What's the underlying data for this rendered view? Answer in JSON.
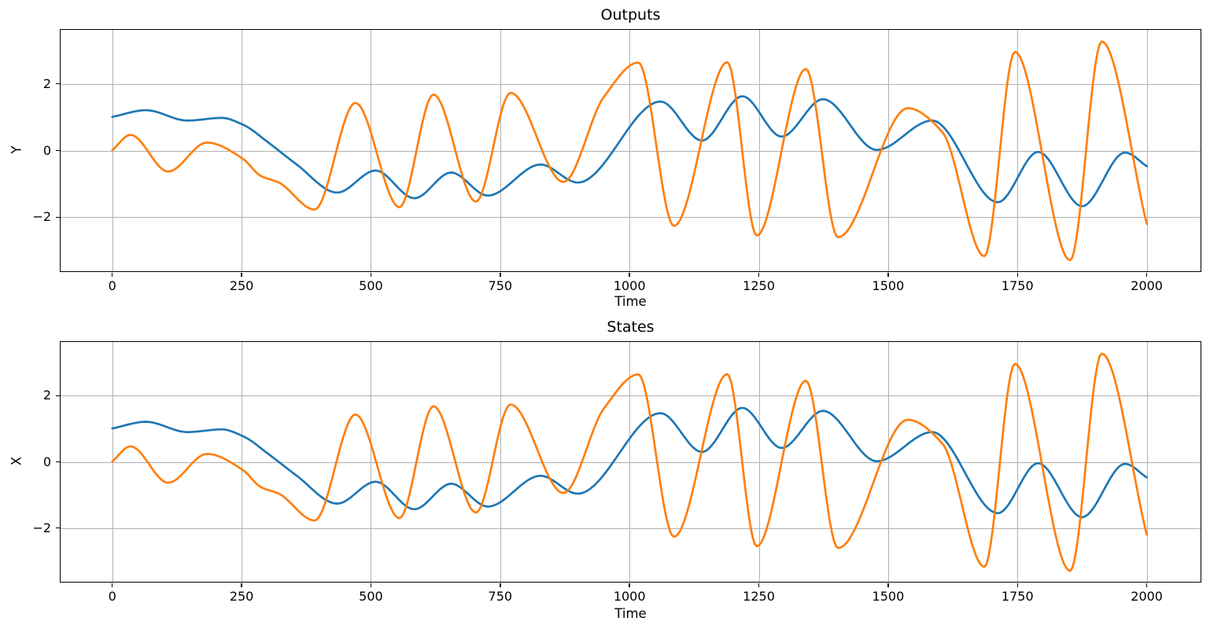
{
  "figure": {
    "background": "#ffffff"
  },
  "palette": {
    "series_blue": "#1f77b4",
    "series_orange": "#ff7f0e",
    "grid": "#b0b0b0",
    "spine": "#000000",
    "text": "#000000"
  },
  "chart_data": [
    {
      "type": "line",
      "title": "Outputs",
      "xlabel": "Time",
      "ylabel": "Y",
      "xlim": [
        -100,
        2104
      ],
      "ylim": [
        -3.62,
        3.62
      ],
      "x_ticks": [
        0,
        250,
        500,
        750,
        1000,
        1250,
        1500,
        1750,
        2000
      ],
      "y_ticks": [
        -2,
        0,
        2
      ],
      "grid": true,
      "legend": false,
      "curve": "smooth",
      "series": [
        {
          "id": "series-blue",
          "color": "#1f77b4",
          "points": [
            [
              0,
              1.01
            ],
            [
              65,
              1.21
            ],
            [
              145,
              0.9
            ],
            [
              212,
              0.98
            ],
            [
              252,
              0.78
            ],
            [
              305,
              0.2
            ],
            [
              355,
              -0.4
            ],
            [
              435,
              -1.26
            ],
            [
              509,
              -0.6
            ],
            [
              584,
              -1.43
            ],
            [
              655,
              -0.66
            ],
            [
              726,
              -1.35
            ],
            [
              828,
              -0.42
            ],
            [
              900,
              -0.96
            ],
            [
              1060,
              1.47
            ],
            [
              1140,
              0.3
            ],
            [
              1218,
              1.63
            ],
            [
              1294,
              0.42
            ],
            [
              1374,
              1.54
            ],
            [
              1478,
              0.02
            ],
            [
              1585,
              0.9
            ],
            [
              1712,
              -1.55
            ],
            [
              1790,
              -0.04
            ],
            [
              1875,
              -1.67
            ],
            [
              1958,
              -0.06
            ],
            [
              2000,
              -0.47
            ]
          ]
        },
        {
          "id": "series-orange",
          "color": "#ff7f0e",
          "points": [
            [
              0,
              0.01
            ],
            [
              35,
              0.47
            ],
            [
              108,
              -0.63
            ],
            [
              183,
              0.24
            ],
            [
              252,
              -0.24
            ],
            [
              287,
              -0.76
            ],
            [
              322,
              -0.96
            ],
            [
              391,
              -1.77
            ],
            [
              470,
              1.43
            ],
            [
              555,
              -1.7
            ],
            [
              621,
              1.68
            ],
            [
              703,
              -1.53
            ],
            [
              770,
              1.73
            ],
            [
              872,
              -0.94
            ],
            [
              950,
              1.6
            ],
            [
              1017,
              2.64
            ],
            [
              1086,
              -2.26
            ],
            [
              1189,
              2.65
            ],
            [
              1246,
              -2.55
            ],
            [
              1341,
              2.45
            ],
            [
              1403,
              -2.6
            ],
            [
              1538,
              1.27
            ],
            [
              1605,
              0.55
            ],
            [
              1686,
              -3.17
            ],
            [
              1745,
              2.96
            ],
            [
              1852,
              -3.29
            ],
            [
              1913,
              3.27
            ],
            [
              2000,
              -2.2
            ]
          ]
        }
      ]
    },
    {
      "type": "line",
      "title": "States",
      "xlabel": "Time",
      "ylabel": "X",
      "xlim": [
        -100,
        2104
      ],
      "ylim": [
        -3.62,
        3.62
      ],
      "x_ticks": [
        0,
        250,
        500,
        750,
        1000,
        1250,
        1500,
        1750,
        2000
      ],
      "y_ticks": [
        -2,
        0,
        2
      ],
      "grid": true,
      "legend": false,
      "curve": "smooth",
      "series": [
        {
          "id": "series-blue",
          "color": "#1f77b4",
          "points": [
            [
              0,
              1.01
            ],
            [
              65,
              1.21
            ],
            [
              145,
              0.9
            ],
            [
              212,
              0.98
            ],
            [
              252,
              0.78
            ],
            [
              305,
              0.2
            ],
            [
              355,
              -0.4
            ],
            [
              435,
              -1.26
            ],
            [
              509,
              -0.6
            ],
            [
              584,
              -1.43
            ],
            [
              655,
              -0.66
            ],
            [
              726,
              -1.35
            ],
            [
              828,
              -0.42
            ],
            [
              900,
              -0.96
            ],
            [
              1060,
              1.47
            ],
            [
              1140,
              0.3
            ],
            [
              1218,
              1.63
            ],
            [
              1294,
              0.42
            ],
            [
              1374,
              1.54
            ],
            [
              1478,
              0.02
            ],
            [
              1585,
              0.9
            ],
            [
              1712,
              -1.55
            ],
            [
              1790,
              -0.04
            ],
            [
              1875,
              -1.67
            ],
            [
              1958,
              -0.06
            ],
            [
              2000,
              -0.47
            ]
          ]
        },
        {
          "id": "series-orange",
          "color": "#ff7f0e",
          "points": [
            [
              0,
              0.01
            ],
            [
              35,
              0.47
            ],
            [
              108,
              -0.63
            ],
            [
              183,
              0.24
            ],
            [
              252,
              -0.24
            ],
            [
              287,
              -0.76
            ],
            [
              322,
              -0.96
            ],
            [
              391,
              -1.77
            ],
            [
              470,
              1.43
            ],
            [
              555,
              -1.7
            ],
            [
              621,
              1.68
            ],
            [
              703,
              -1.53
            ],
            [
              770,
              1.73
            ],
            [
              872,
              -0.94
            ],
            [
              950,
              1.6
            ],
            [
              1017,
              2.64
            ],
            [
              1086,
              -2.26
            ],
            [
              1189,
              2.65
            ],
            [
              1246,
              -2.55
            ],
            [
              1341,
              2.45
            ],
            [
              1403,
              -2.6
            ],
            [
              1538,
              1.27
            ],
            [
              1605,
              0.55
            ],
            [
              1686,
              -3.17
            ],
            [
              1745,
              2.96
            ],
            [
              1852,
              -3.29
            ],
            [
              1913,
              3.27
            ],
            [
              2000,
              -2.2
            ]
          ]
        }
      ]
    }
  ]
}
